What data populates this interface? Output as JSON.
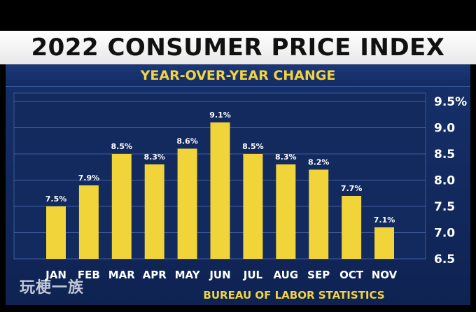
{
  "chart_data": {
    "type": "bar",
    "title": "2022 CONSUMER PRICE INDEX",
    "subtitle": "YEAR-OVER-YEAR CHANGE",
    "source": "BUREAU OF LABOR STATISTICS",
    "categories": [
      "JAN",
      "FEB",
      "MAR",
      "APR",
      "MAY",
      "JUN",
      "JUL",
      "AUG",
      "SEP",
      "OCT",
      "NOV"
    ],
    "values": [
      7.5,
      7.9,
      8.5,
      8.3,
      8.6,
      9.1,
      8.5,
      8.3,
      8.2,
      7.7,
      7.1
    ],
    "data_labels": [
      "7.5%",
      "7.9%",
      "8.5%",
      "8.3%",
      "8.6%",
      "9.1%",
      "8.5%",
      "8.3%",
      "8.2%",
      "7.7%",
      "7.1%"
    ],
    "yticks": [
      "9.5%",
      "9.0",
      "8.5",
      "8.0",
      "7.5",
      "7.0",
      "6.5"
    ],
    "ytick_values": [
      9.5,
      9.0,
      8.5,
      8.0,
      7.5,
      7.0,
      6.5
    ],
    "ylim": [
      6.5,
      9.5
    ],
    "xlabel": "",
    "ylabel": "",
    "y_axis_side": "right",
    "grid": true,
    "colors": {
      "bar": "#f0d43a",
      "background": "#13295c",
      "grid": "#3f5c9c",
      "label": "#f2d340"
    }
  },
  "watermark": "玩梗一族"
}
